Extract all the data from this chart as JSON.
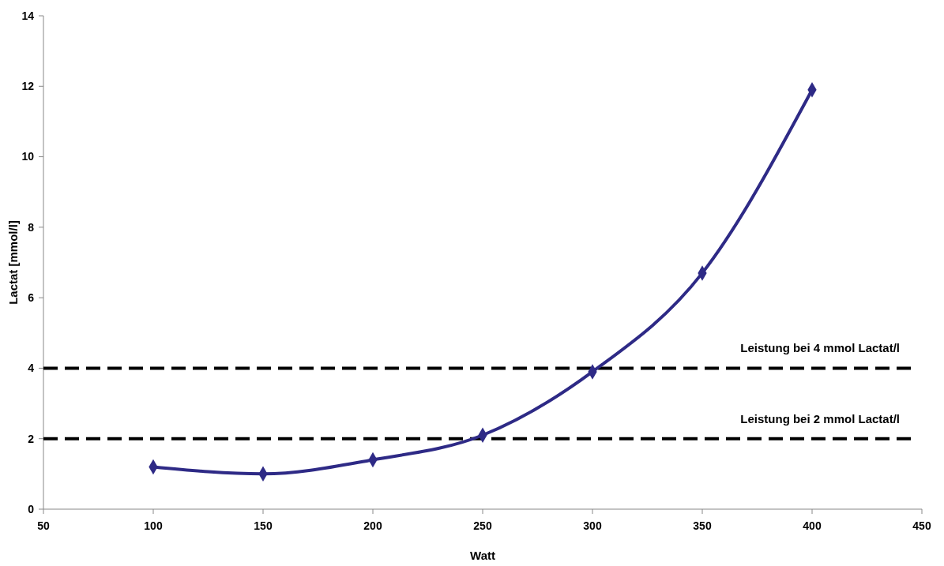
{
  "chart_data": {
    "type": "line",
    "xlabel": "Watt",
    "ylabel": "Lactat [mmol/l]",
    "x": [
      100,
      150,
      200,
      250,
      300,
      350,
      400
    ],
    "series": [
      {
        "color": "#2e2a86",
        "values": [
          1.2,
          1.0,
          1.4,
          2.1,
          3.9,
          6.7,
          11.9
        ]
      }
    ],
    "xlim": [
      50,
      450
    ],
    "xticks": [
      50,
      100,
      150,
      200,
      250,
      300,
      350,
      400,
      450
    ],
    "ylim": [
      0,
      14
    ],
    "yticks": [
      0,
      2,
      4,
      6,
      8,
      10,
      12,
      14
    ],
    "grid": false,
    "marker": "diamond",
    "line_style": "solid",
    "ref_lines": [
      {
        "axis": "y",
        "value": 4,
        "label": "Leistung bei 4 mmol Lactat/l",
        "color": "#000000",
        "line_style": "dashed"
      },
      {
        "axis": "y",
        "value": 2,
        "label": "Leistung bei 2 mmol Lactat/l",
        "color": "#000000",
        "line_style": "dashed"
      }
    ]
  }
}
